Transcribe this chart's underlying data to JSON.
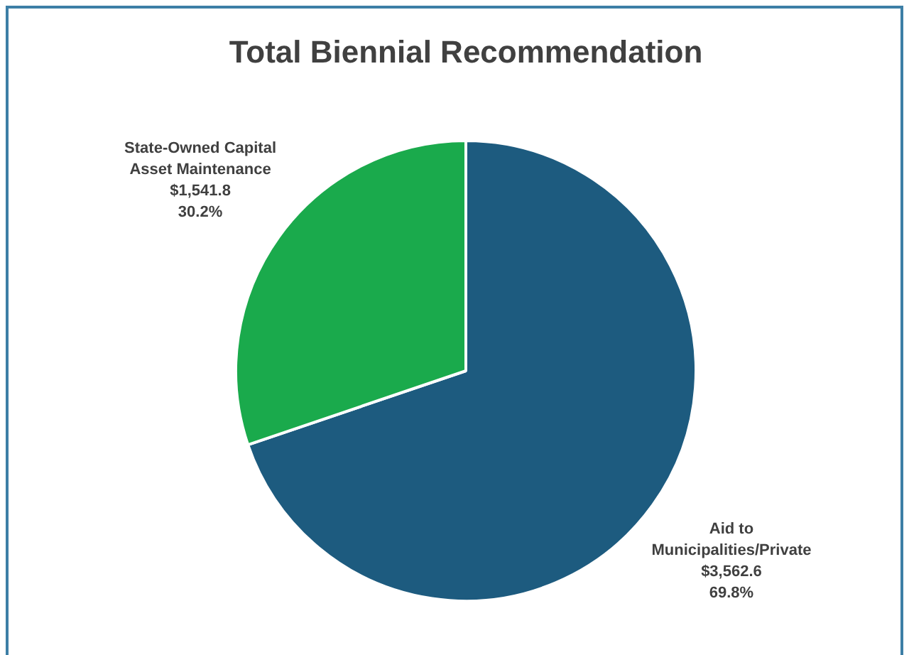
{
  "chart_data": {
    "type": "pie",
    "title": "Total Biennial Recommendation",
    "categories": [
      "Aid to Municipalities/Private",
      "State-Owned Capital Asset Maintenance"
    ],
    "values": [
      3562.6,
      1541.8
    ],
    "colors": [
      "#1d5b7f",
      "#1aaa4c"
    ],
    "value_labels": [
      "$3,562.6 69.8%",
      "$1,541.8 30.2%"
    ],
    "legend": false
  }
}
